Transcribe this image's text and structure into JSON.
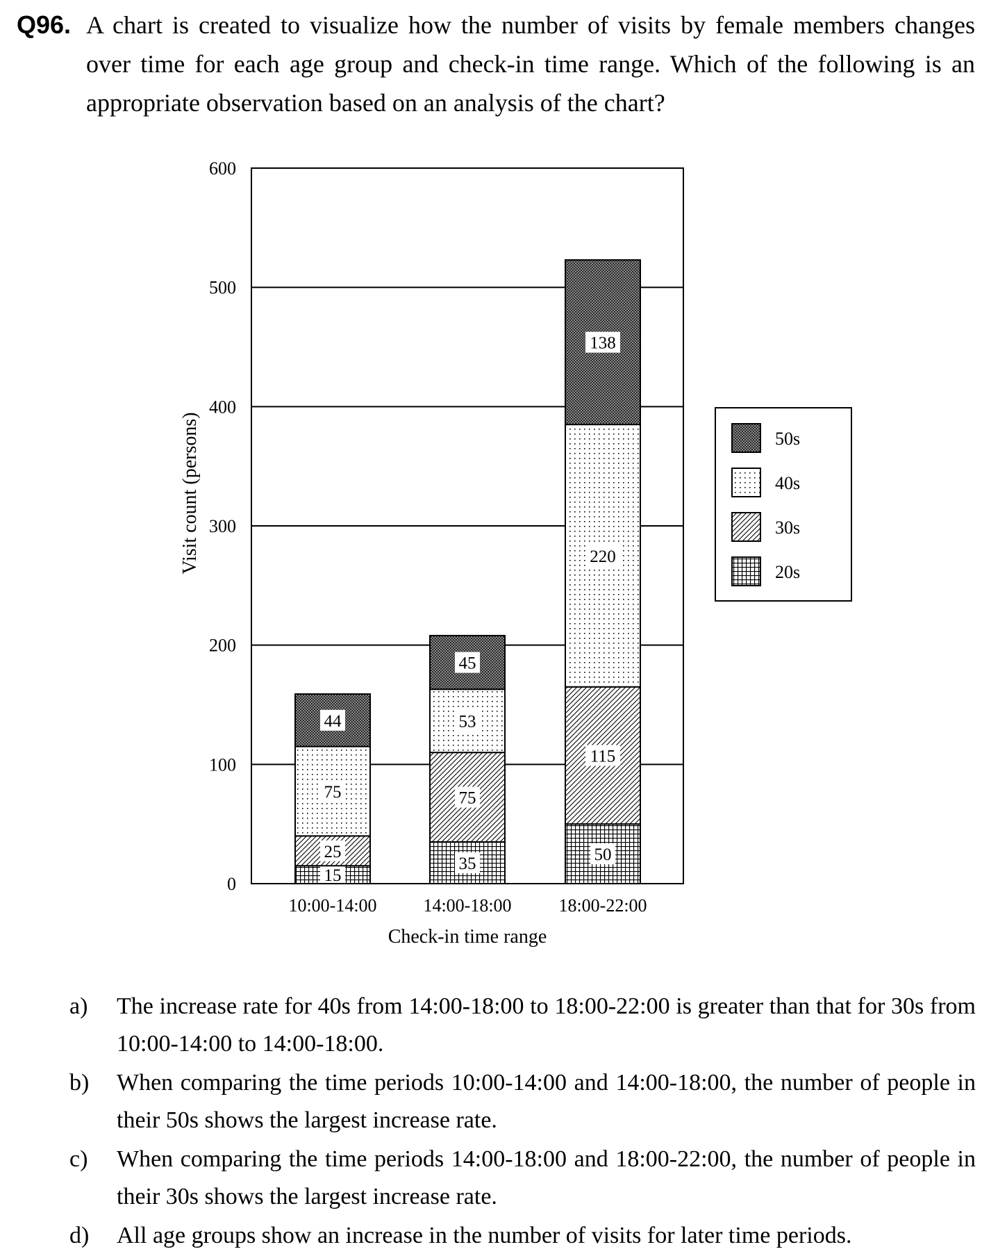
{
  "question": {
    "number": "Q96.",
    "text": "A chart is created to visualize how the number of visits by female members changes over time for each age group and check-in time range.  Which of the following is an appropriate observation based on an analysis of the chart?"
  },
  "chart_data": {
    "type": "bar",
    "stacked": true,
    "title": "",
    "xlabel": "Check-in time range",
    "ylabel": "Visit count (persons)",
    "ylim": [
      0,
      600
    ],
    "yticks": [
      0,
      100,
      200,
      300,
      400,
      500,
      600
    ],
    "grid": true,
    "legend_position": "right",
    "categories": [
      "10:00-14:00",
      "14:00-18:00",
      "18:00-22:00"
    ],
    "series": [
      {
        "name": "20s",
        "pattern": "grid",
        "values": [
          15,
          35,
          50
        ]
      },
      {
        "name": "30s",
        "pattern": "diagonal",
        "values": [
          25,
          75,
          115
        ]
      },
      {
        "name": "40s",
        "pattern": "dots",
        "values": [
          75,
          53,
          220
        ]
      },
      {
        "name": "50s",
        "pattern": "dense",
        "values": [
          44,
          45,
          138
        ]
      }
    ],
    "legend_order": [
      "50s",
      "40s",
      "30s",
      "20s"
    ]
  },
  "options": [
    {
      "letter": "a)",
      "text": "The increase rate for 40s from 14:00-18:00 to 18:00-22:00 is greater than that for 30s from 10:00-14:00 to 14:00-18:00."
    },
    {
      "letter": "b)",
      "text": "When comparing the time periods 10:00-14:00 and 14:00-18:00, the number of people in their 50s shows the largest increase rate."
    },
    {
      "letter": "c)",
      "text": "When comparing the time periods 14:00-18:00 and 18:00-22:00, the number of people in their 30s shows the largest increase rate."
    },
    {
      "letter": "d)",
      "text": "All age groups show an increase in the number of visits for later time periods."
    }
  ]
}
